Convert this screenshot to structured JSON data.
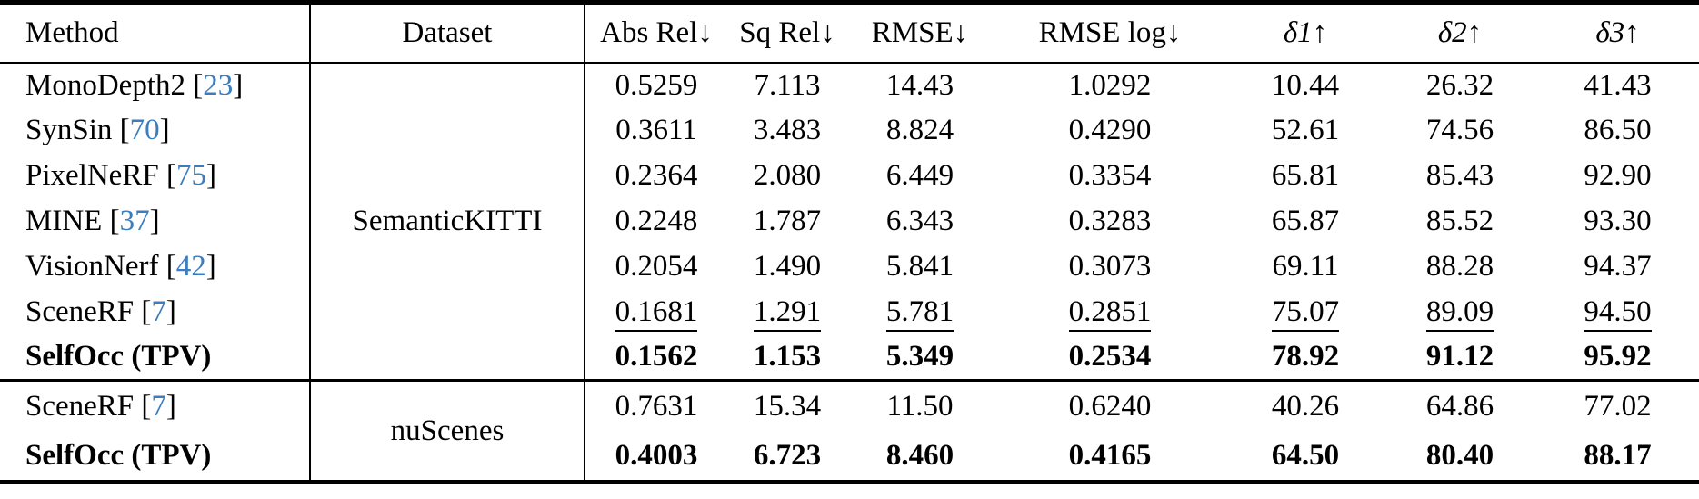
{
  "colors": {
    "background": "#ffffff",
    "text": "#000000",
    "citation_link": "#3b7dbf",
    "rule": "#000000"
  },
  "table": {
    "cite_open": "[",
    "cite_close": "]",
    "columns": [
      {
        "key": "method",
        "label": "Method"
      },
      {
        "key": "dataset",
        "label": "Dataset"
      },
      {
        "key": "abs_rel",
        "label": "Abs Rel↓"
      },
      {
        "key": "sq_rel",
        "label": "Sq Rel↓"
      },
      {
        "key": "rmse",
        "label": "RMSE↓"
      },
      {
        "key": "rmse_log",
        "label": "RMSE log↓"
      },
      {
        "key": "delta1",
        "label": "δ1↑"
      },
      {
        "key": "delta2",
        "label": "δ2↑"
      },
      {
        "key": "delta3",
        "label": "δ3↑"
      }
    ],
    "sections": [
      {
        "dataset": "SemanticKITTI",
        "rows": [
          {
            "method": "MonoDepth2",
            "cite": "23",
            "bold": false,
            "underline": false,
            "values": [
              "0.5259",
              "7.113",
              "14.43",
              "1.0292",
              "10.44",
              "26.32",
              "41.43"
            ]
          },
          {
            "method": "SynSin",
            "cite": "70",
            "bold": false,
            "underline": false,
            "values": [
              "0.3611",
              "3.483",
              "8.824",
              "0.4290",
              "52.61",
              "74.56",
              "86.50"
            ]
          },
          {
            "method": "PixelNeRF",
            "cite": "75",
            "bold": false,
            "underline": false,
            "values": [
              "0.2364",
              "2.080",
              "6.449",
              "0.3354",
              "65.81",
              "85.43",
              "92.90"
            ]
          },
          {
            "method": "MINE",
            "cite": "37",
            "bold": false,
            "underline": false,
            "values": [
              "0.2248",
              "1.787",
              "6.343",
              "0.3283",
              "65.87",
              "85.52",
              "93.30"
            ]
          },
          {
            "method": "VisionNerf",
            "cite": "42",
            "bold": false,
            "underline": false,
            "values": [
              "0.2054",
              "1.490",
              "5.841",
              "0.3073",
              "69.11",
              "88.28",
              "94.37"
            ]
          },
          {
            "method": "SceneRF",
            "cite": "7",
            "bold": false,
            "underline": true,
            "values": [
              "0.1681",
              "1.291",
              "5.781",
              "0.2851",
              "75.07",
              "89.09",
              "94.50"
            ]
          },
          {
            "method": "SelfOcc (TPV)",
            "cite": null,
            "bold": true,
            "underline": false,
            "values": [
              "0.1562",
              "1.153",
              "5.349",
              "0.2534",
              "78.92",
              "91.12",
              "95.92"
            ]
          }
        ]
      },
      {
        "dataset": "nuScenes",
        "rows": [
          {
            "method": "SceneRF",
            "cite": "7",
            "bold": false,
            "underline": false,
            "values": [
              "0.7631",
              "15.34",
              "11.50",
              "0.6240",
              "40.26",
              "64.86",
              "77.02"
            ]
          },
          {
            "method": "SelfOcc (TPV)",
            "cite": null,
            "bold": true,
            "underline": false,
            "values": [
              "0.4003",
              "6.723",
              "8.460",
              "0.4165",
              "64.50",
              "80.40",
              "88.17"
            ]
          }
        ]
      }
    ]
  }
}
